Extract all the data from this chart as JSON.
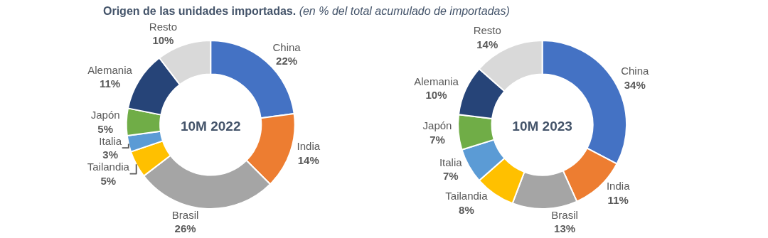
{
  "chart_data": [
    {
      "type": "donut",
      "title": "Origen de las unidades importadas.",
      "subtitle": "(en % del total acumulado de importadas)",
      "annotations": [
        "10M 2022"
      ],
      "categories": [
        "China",
        "India",
        "Brasil",
        "Tailandia",
        "Italia",
        "Japón",
        "Alemania",
        "Resto"
      ],
      "values": [
        22,
        14,
        26,
        5,
        3,
        5,
        11,
        10
      ],
      "value_labels": [
        "22%",
        "14%",
        "26%",
        "5%",
        "3%",
        "5%",
        "11%",
        "10%"
      ],
      "colors": [
        "#4472c4",
        "#ed7d31",
        "#a5a5a5",
        "#ffc000",
        "#5b9bd5",
        "#70ad47",
        "#264478",
        "#d9d9d9"
      ]
    },
    {
      "type": "donut",
      "annotations": [
        "10M 2023"
      ],
      "categories": [
        "China",
        "India",
        "Brasil",
        "Tailandia",
        "Italia",
        "Japón",
        "Alemania",
        "Resto"
      ],
      "values": [
        34,
        11,
        13,
        8,
        7,
        7,
        10,
        14
      ],
      "value_labels": [
        "34%",
        "11%",
        "13%",
        "8%",
        "7%",
        "7%",
        "10%",
        "14%"
      ],
      "colors": [
        "#4472c4",
        "#ed7d31",
        "#a5a5a5",
        "#ffc000",
        "#5b9bd5",
        "#70ad47",
        "#264478",
        "#d9d9d9"
      ]
    }
  ]
}
